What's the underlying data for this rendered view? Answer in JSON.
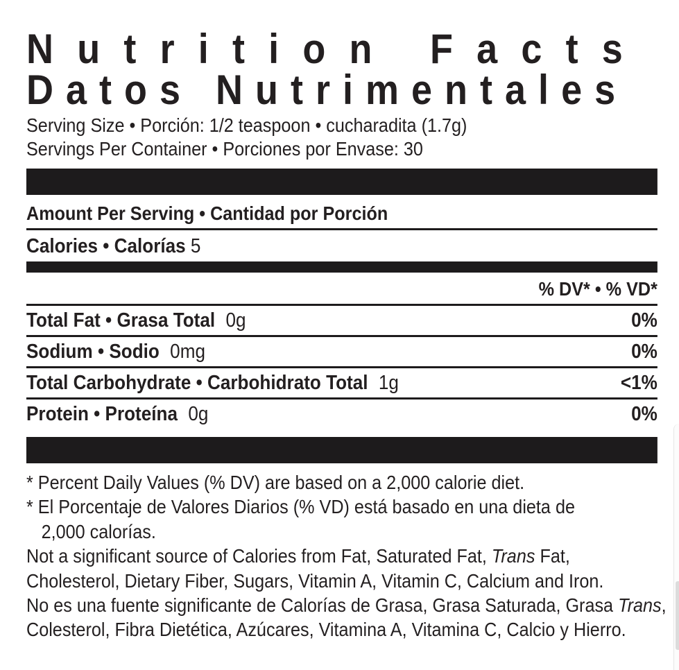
{
  "colors": {
    "background": "#ffffff",
    "text": "#231f20",
    "divider_bar": "#1d1b1c",
    "scroll_thumb": "#dcdcdc"
  },
  "label": {
    "title_en": "Nutrition Facts",
    "title_es": "Datos Nutrimentales",
    "serving_size": "Serving Size • Porción: 1/2 teaspoon • cucharadita (1.7g)",
    "servings_per_container": "Servings Per Container • Porciones por Envase: 30",
    "amount_per_serving": "Amount Per Serving • Cantidad por Porción",
    "calories": {
      "label": "Calories • Calorías",
      "value": "5"
    },
    "dv_header": "% DV* • % VD*",
    "rows": [
      {
        "name": "Total Fat • Grasa Total",
        "amount": "0g",
        "dv": "0%"
      },
      {
        "name": "Sodium • Sodio",
        "amount": "0mg",
        "dv": "0%"
      },
      {
        "name": "Total Carbohydrate • Carbohidrato Total",
        "amount": "1g",
        "dv": "<1%"
      },
      {
        "name": "Protein • Proteína",
        "amount": "0g",
        "dv": "0%"
      }
    ],
    "footnotes": {
      "percent_dv_en": "* Percent Daily Values (% DV) are based on a 2,000 calorie diet.",
      "percent_dv_es_line1": "* El Porcentaje de Valores Diarios (% VD) está basado en una dieta de",
      "percent_dv_es_line2": "2,000 calorías.",
      "trans_word": "Trans",
      "not_significant_en_line1_pre": "Not a significant source of Calories from Fat, Saturated Fat, ",
      "not_significant_en_line1_post": " Fat,",
      "not_significant_en_line2": "Cholesterol, Dietary Fiber, Sugars, Vitamin A, Vitamin C, Calcium and Iron.",
      "not_significant_es_line1_pre": "No es una fuente significante de Calorías de Grasa, Grasa Saturada, Grasa ",
      "not_significant_es_line1_post": ",",
      "not_significant_es_line2": "Colesterol, Fibra Dietética, Azúcares, Vitamina A, Vitamina C, Calcio y Hierro."
    }
  }
}
